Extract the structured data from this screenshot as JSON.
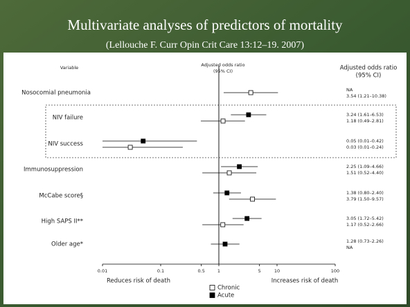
{
  "chart_data": {
    "type": "forest",
    "title": "Multivariate analyses of predictors of mortality",
    "subtitle": "(Lellouche F. Curr Opin Crit Care 13:12–19. 2007)",
    "variable_header": "Variable",
    "plot_header": [
      "Adjusted odds ratio",
      "(95% CI)"
    ],
    "ci_header": [
      "Adjusted odds ratio",
      "(95% CI)"
    ],
    "xlabel_left": "Reduces risk of death",
    "xlabel_right": "Increases risk of death",
    "log_x": true,
    "xlim": [
      0.01,
      100
    ],
    "xticks": [
      0.01,
      0.1,
      0.5,
      1,
      5,
      10,
      100
    ],
    "reference": 1,
    "categories": [
      "Nosocomial pneumonia",
      "NIV failure",
      "NIV success",
      "Immunosuppression",
      "McCabe score§",
      "High SAPS II**",
      "Older age*"
    ],
    "series": [
      {
        "name": "Acute",
        "color": "#000000",
        "values": [
          null,
          3.24,
          0.05,
          2.25,
          1.38,
          3.05,
          1.28
        ],
        "lower": [
          null,
          1.61,
          0.01,
          1.09,
          0.8,
          1.72,
          0.73
        ],
        "upper": [
          null,
          6.53,
          0.42,
          4.66,
          2.4,
          5.42,
          2.26
        ],
        "value_labels": [
          "NA",
          "3.24 (1.61–6.53)",
          "0.05 (0.01–0.42)",
          "2.25 (1.09–4.66)",
          "1.38 (0.80–2.40)",
          "3.05 (1.72–5.42)",
          "1.28 (0.73–2.26)"
        ]
      },
      {
        "name": "Chronic",
        "color": "#ffffff",
        "values": [
          3.54,
          1.18,
          0.03,
          1.51,
          3.79,
          1.17,
          null
        ],
        "lower": [
          1.21,
          0.49,
          0.01,
          0.52,
          1.5,
          0.52,
          null
        ],
        "upper": [
          10.38,
          2.81,
          0.24,
          4.4,
          9.57,
          2.66,
          null
        ],
        "value_labels": [
          "3.54 (1.21–10.38)",
          "1.18 (0.49–2.81)",
          "0.03 (0.01–0.24)",
          "1.51 (0.52–4.40)",
          "3.79 (1.50–9.57)",
          "1.17 (0.52–2.66)",
          "NA"
        ]
      }
    ]
  }
}
